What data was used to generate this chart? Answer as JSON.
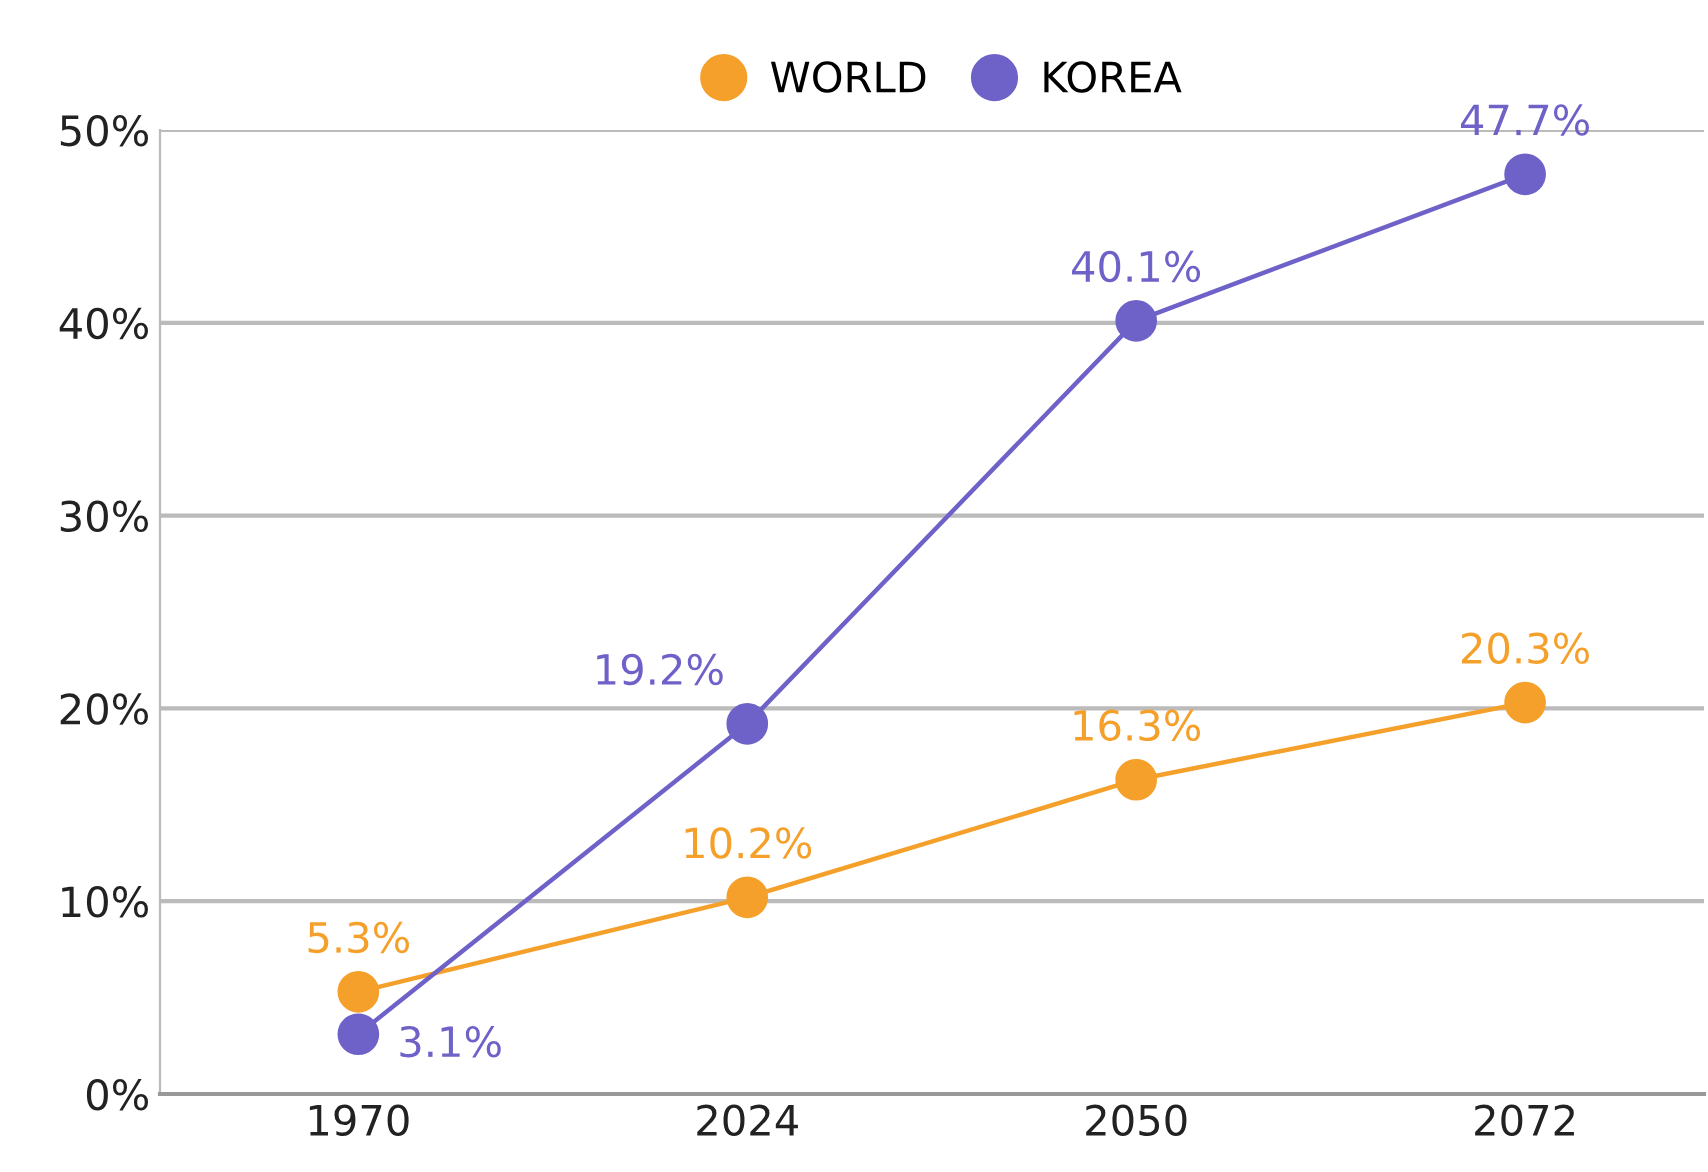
{
  "chart_data": {
    "type": "line",
    "categories": [
      "1970",
      "2024",
      "2050",
      "2072"
    ],
    "series": [
      {
        "name": "WORLD",
        "color": "#f5a02a",
        "values": [
          5.3,
          10.2,
          16.3,
          20.3
        ],
        "value_labels": [
          "5.3%",
          "10.2%",
          "16.3%",
          "20.3%"
        ]
      },
      {
        "name": "KOREA",
        "color": "#6e62c8",
        "values": [
          3.1,
          19.2,
          40.1,
          47.7
        ],
        "value_labels": [
          "3.1%",
          "19.2%",
          "40.1%",
          "47.7%"
        ]
      }
    ],
    "ylim": [
      0,
      50
    ],
    "yticks": [
      {
        "value": 0,
        "label": "0%"
      },
      {
        "value": 10,
        "label": "10%"
      },
      {
        "value": 20,
        "label": "20%"
      },
      {
        "value": 30,
        "label": "30%"
      },
      {
        "value": 40,
        "label": "40%"
      },
      {
        "value": 50,
        "label": "50%"
      }
    ],
    "grid": "y",
    "legend": "top",
    "marker": "circle",
    "line_style": "solid"
  }
}
